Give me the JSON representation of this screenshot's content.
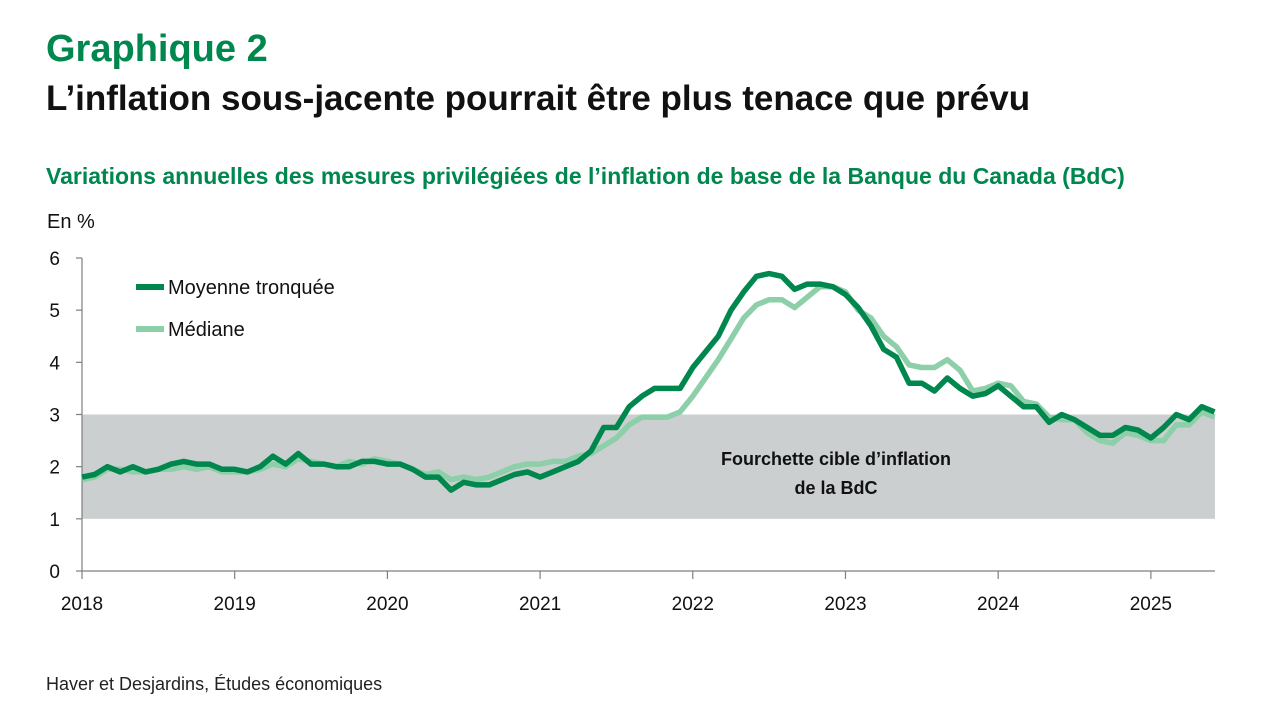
{
  "header": {
    "kicker": "Graphique 2",
    "title": "L’inflation sous-jacente pourrait être plus tenace que prévu",
    "subtitle": "Variations annuelles des mesures privilégiées de l’inflation de base de la Banque du Canada (BdC)"
  },
  "footer": {
    "source": "Haver et Desjardins, Études économiques"
  },
  "colors": {
    "trimmed": "#00874e",
    "median": "#8dcfa8",
    "band": "#cbcfcf",
    "axis": "#7f7f7f"
  },
  "chart_data": {
    "type": "line",
    "ylabel": "En %",
    "ylim": [
      0,
      6
    ],
    "yticks": [
      0,
      1,
      2,
      3,
      4,
      5,
      6
    ],
    "xlim": [
      2018.0,
      2025.42
    ],
    "xticks": [
      2018,
      2019,
      2020,
      2021,
      2022,
      2023,
      2024,
      2025
    ],
    "grid": false,
    "legend_position": "top-left",
    "target_band": {
      "low": 1,
      "high": 3,
      "label_lines": [
        "Fourchette cible d’inflation",
        "de la BdC"
      ]
    },
    "x_start": 2018.0,
    "x_step_months": 1,
    "series": [
      {
        "name": "Moyenne tronquée",
        "key": "trimmed",
        "values": [
          1.8,
          1.85,
          2.0,
          1.9,
          2.0,
          1.9,
          1.95,
          2.05,
          2.1,
          2.05,
          2.05,
          1.95,
          1.95,
          1.9,
          2.0,
          2.2,
          2.05,
          2.25,
          2.05,
          2.05,
          2.0,
          2.0,
          2.1,
          2.1,
          2.05,
          2.05,
          1.95,
          1.8,
          1.8,
          1.55,
          1.7,
          1.65,
          1.65,
          1.75,
          1.85,
          1.9,
          1.8,
          1.9,
          2.0,
          2.1,
          2.3,
          2.75,
          2.75,
          3.15,
          3.35,
          3.5,
          3.5,
          3.5,
          3.9,
          4.2,
          4.5,
          5.0,
          5.35,
          5.65,
          5.7,
          5.65,
          5.4,
          5.5,
          5.5,
          5.45,
          5.3,
          5.05,
          4.7,
          4.25,
          4.1,
          3.6,
          3.6,
          3.45,
          3.7,
          3.5,
          3.35,
          3.4,
          3.55,
          3.35,
          3.15,
          3.15,
          2.85,
          3.0,
          2.9,
          2.75,
          2.6,
          2.6,
          2.75,
          2.7,
          2.55,
          2.75,
          3.0,
          2.9,
          3.15,
          3.05
        ]
      },
      {
        "name": "Médiane",
        "key": "median",
        "values": [
          1.75,
          1.8,
          1.95,
          1.95,
          1.9,
          1.9,
          1.95,
          1.95,
          2.0,
          1.95,
          2.0,
          1.9,
          1.9,
          1.9,
          1.95,
          2.05,
          2.0,
          2.15,
          2.1,
          2.05,
          2.0,
          2.1,
          2.05,
          2.15,
          2.1,
          2.05,
          1.95,
          1.85,
          1.9,
          1.75,
          1.8,
          1.75,
          1.8,
          1.9,
          2.0,
          2.05,
          2.05,
          2.1,
          2.1,
          2.2,
          2.25,
          2.4,
          2.55,
          2.8,
          2.95,
          2.95,
          2.95,
          3.05,
          3.35,
          3.7,
          4.05,
          4.45,
          4.85,
          5.1,
          5.2,
          5.2,
          5.05,
          5.25,
          5.45,
          5.45,
          5.35,
          5.0,
          4.85,
          4.5,
          4.3,
          3.95,
          3.9,
          3.9,
          4.05,
          3.85,
          3.45,
          3.5,
          3.6,
          3.55,
          3.25,
          3.2,
          2.95,
          2.9,
          2.9,
          2.65,
          2.5,
          2.45,
          2.65,
          2.6,
          2.5,
          2.5,
          2.8,
          2.8,
          3.05,
          2.95
        ]
      }
    ]
  }
}
